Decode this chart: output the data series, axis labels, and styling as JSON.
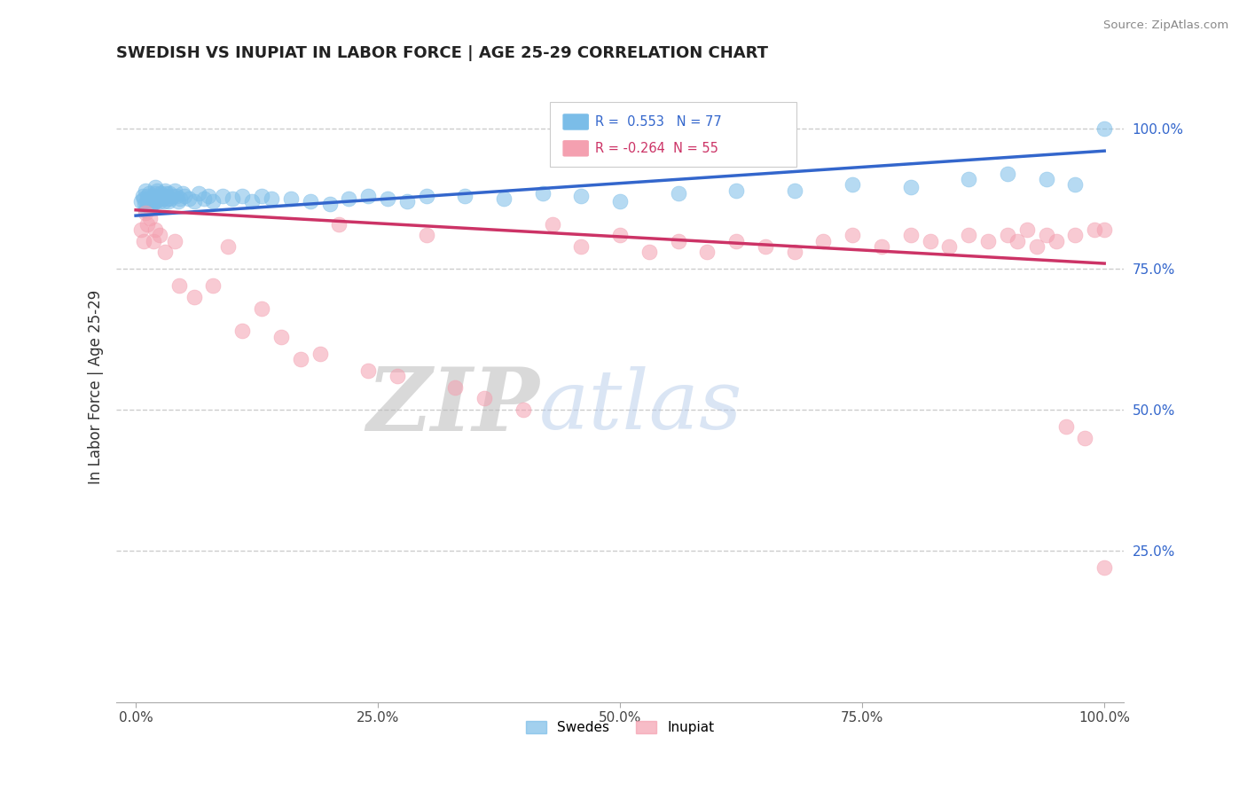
{
  "title": "SWEDISH VS INUPIAT IN LABOR FORCE | AGE 25-29 CORRELATION CHART",
  "source": "Source: ZipAtlas.com",
  "ylabel": "In Labor Force | Age 25-29",
  "xlim": [
    -0.02,
    1.02
  ],
  "ylim": [
    -0.02,
    1.1
  ],
  "xticks": [
    0.0,
    0.25,
    0.5,
    0.75,
    1.0
  ],
  "yticks": [
    0.25,
    0.5,
    0.75,
    1.0
  ],
  "xtick_labels": [
    "0.0%",
    "25.0%",
    "50.0%",
    "75.0%",
    "100.0%"
  ],
  "ytick_labels": [
    "25.0%",
    "50.0%",
    "75.0%",
    "100.0%"
  ],
  "grid_color": "#cccccc",
  "background_color": "#ffffff",
  "swedish_color": "#7bbde8",
  "inupiat_color": "#f4a0b0",
  "swedish_line_color": "#3366cc",
  "inupiat_line_color": "#cc3366",
  "swedish_R": 0.553,
  "swedish_N": 77,
  "inupiat_R": -0.264,
  "inupiat_N": 55,
  "legend_labels": [
    "Swedes",
    "Inupiat"
  ],
  "swedish_x": [
    0.005,
    0.007,
    0.008,
    0.009,
    0.01,
    0.01,
    0.011,
    0.012,
    0.012,
    0.013,
    0.014,
    0.015,
    0.015,
    0.016,
    0.017,
    0.018,
    0.019,
    0.02,
    0.02,
    0.021,
    0.022,
    0.023,
    0.024,
    0.025,
    0.026,
    0.027,
    0.028,
    0.029,
    0.03,
    0.031,
    0.032,
    0.033,
    0.034,
    0.035,
    0.036,
    0.038,
    0.04,
    0.042,
    0.044,
    0.046,
    0.048,
    0.05,
    0.055,
    0.06,
    0.065,
    0.07,
    0.075,
    0.08,
    0.09,
    0.1,
    0.11,
    0.12,
    0.13,
    0.14,
    0.16,
    0.18,
    0.2,
    0.22,
    0.24,
    0.26,
    0.28,
    0.3,
    0.34,
    0.38,
    0.42,
    0.46,
    0.5,
    0.56,
    0.62,
    0.68,
    0.74,
    0.8,
    0.86,
    0.9,
    0.94,
    0.97,
    1.0
  ],
  "swedish_y": [
    0.87,
    0.88,
    0.875,
    0.865,
    0.855,
    0.89,
    0.86,
    0.87,
    0.88,
    0.875,
    0.885,
    0.87,
    0.86,
    0.875,
    0.865,
    0.88,
    0.87,
    0.895,
    0.885,
    0.87,
    0.89,
    0.88,
    0.875,
    0.87,
    0.885,
    0.875,
    0.88,
    0.87,
    0.89,
    0.885,
    0.88,
    0.875,
    0.87,
    0.885,
    0.875,
    0.88,
    0.89,
    0.88,
    0.87,
    0.875,
    0.885,
    0.88,
    0.875,
    0.87,
    0.885,
    0.875,
    0.88,
    0.87,
    0.88,
    0.875,
    0.88,
    0.87,
    0.88,
    0.875,
    0.875,
    0.87,
    0.865,
    0.875,
    0.88,
    0.875,
    0.87,
    0.88,
    0.88,
    0.875,
    0.885,
    0.88,
    0.87,
    0.885,
    0.89,
    0.89,
    0.9,
    0.895,
    0.91,
    0.92,
    0.91,
    0.9,
    1.0
  ],
  "inupiat_x": [
    0.005,
    0.008,
    0.01,
    0.012,
    0.015,
    0.018,
    0.02,
    0.025,
    0.03,
    0.04,
    0.045,
    0.06,
    0.08,
    0.095,
    0.11,
    0.13,
    0.15,
    0.17,
    0.19,
    0.21,
    0.24,
    0.27,
    0.3,
    0.33,
    0.36,
    0.4,
    0.43,
    0.46,
    0.5,
    0.53,
    0.56,
    0.59,
    0.62,
    0.65,
    0.68,
    0.71,
    0.74,
    0.77,
    0.8,
    0.82,
    0.84,
    0.86,
    0.88,
    0.9,
    0.91,
    0.92,
    0.93,
    0.94,
    0.95,
    0.96,
    0.97,
    0.98,
    0.99,
    1.0,
    1.0
  ],
  "inupiat_y": [
    0.82,
    0.8,
    0.85,
    0.83,
    0.84,
    0.8,
    0.82,
    0.81,
    0.78,
    0.8,
    0.72,
    0.7,
    0.72,
    0.79,
    0.64,
    0.68,
    0.63,
    0.59,
    0.6,
    0.83,
    0.57,
    0.56,
    0.81,
    0.54,
    0.52,
    0.5,
    0.83,
    0.79,
    0.81,
    0.78,
    0.8,
    0.78,
    0.8,
    0.79,
    0.78,
    0.8,
    0.81,
    0.79,
    0.81,
    0.8,
    0.79,
    0.81,
    0.8,
    0.81,
    0.8,
    0.82,
    0.79,
    0.81,
    0.8,
    0.47,
    0.81,
    0.45,
    0.82,
    0.82,
    0.22
  ],
  "swedish_trend": [
    0.845,
    0.96
  ],
  "inupiat_trend": [
    0.855,
    0.76
  ]
}
